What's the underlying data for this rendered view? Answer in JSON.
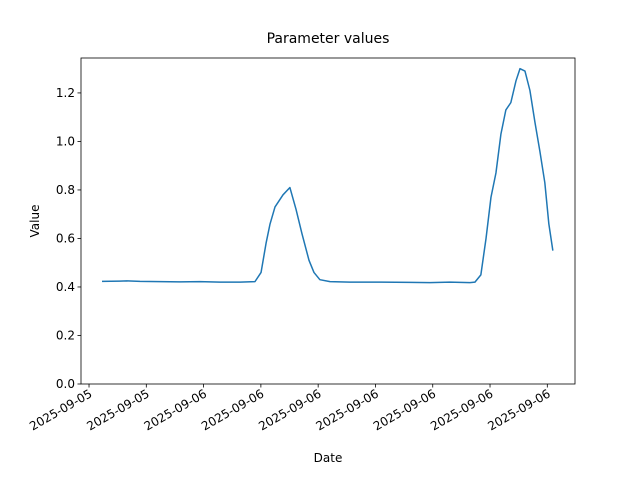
{
  "chart_data": {
    "type": "line",
    "title": "Parameter values",
    "x_label": "Date",
    "y_label": "Value",
    "x": [
      0.68,
      1.62,
      1.99,
      2.67,
      3.72,
      4.76,
      5.81,
      6.86,
      7.91,
      8.69,
      9.01,
      9.27,
      9.48,
      9.74,
      10.16,
      10.52,
      10.84,
      11.15,
      11.52,
      11.78,
      12.09,
      12.62,
      13.66,
      15.24,
      16.81,
      17.85,
      18.9,
      19.95,
      20.21,
      20.52,
      20.79,
      21.05,
      21.31,
      21.57,
      21.83,
      22.09,
      22.36,
      22.57,
      22.83,
      23.09,
      23.35,
      23.61,
      23.87,
      24.08,
      24.29
    ],
    "series": [
      {
        "name": "Value",
        "color": "#1f77b4",
        "values": [
          0.423,
          0.424,
          0.425,
          0.423,
          0.422,
          0.421,
          0.422,
          0.42,
          0.42,
          0.422,
          0.46,
          0.58,
          0.66,
          0.73,
          0.78,
          0.81,
          0.72,
          0.62,
          0.51,
          0.46,
          0.43,
          0.422,
          0.42,
          0.42,
          0.419,
          0.418,
          0.42,
          0.418,
          0.42,
          0.45,
          0.6,
          0.77,
          0.87,
          1.03,
          1.13,
          1.16,
          1.25,
          1.3,
          1.29,
          1.21,
          1.08,
          0.96,
          0.83,
          0.66,
          0.55
        ]
      }
    ],
    "xlim": [
      -0.42,
      25.45
    ],
    "xticks": [
      {
        "value": 0,
        "label": "2025-09-05"
      },
      {
        "value": 3,
        "label": "2025-09-05"
      },
      {
        "value": 6,
        "label": "2025-09-06"
      },
      {
        "value": 9,
        "label": "2025-09-06"
      },
      {
        "value": 12,
        "label": "2025-09-06"
      },
      {
        "value": 15,
        "label": "2025-09-06"
      },
      {
        "value": 18,
        "label": "2025-09-06"
      },
      {
        "value": 21,
        "label": "2025-09-06"
      },
      {
        "value": 24,
        "label": "2025-09-06"
      }
    ],
    "ylim": [
      0,
      1.344
    ],
    "yticks": [
      {
        "value": 0,
        "label": "0.0"
      },
      0.2,
      0.4,
      0.6,
      0.8,
      {
        "value": 1,
        "label": "1.0"
      },
      1.2
    ],
    "grid": false
  }
}
